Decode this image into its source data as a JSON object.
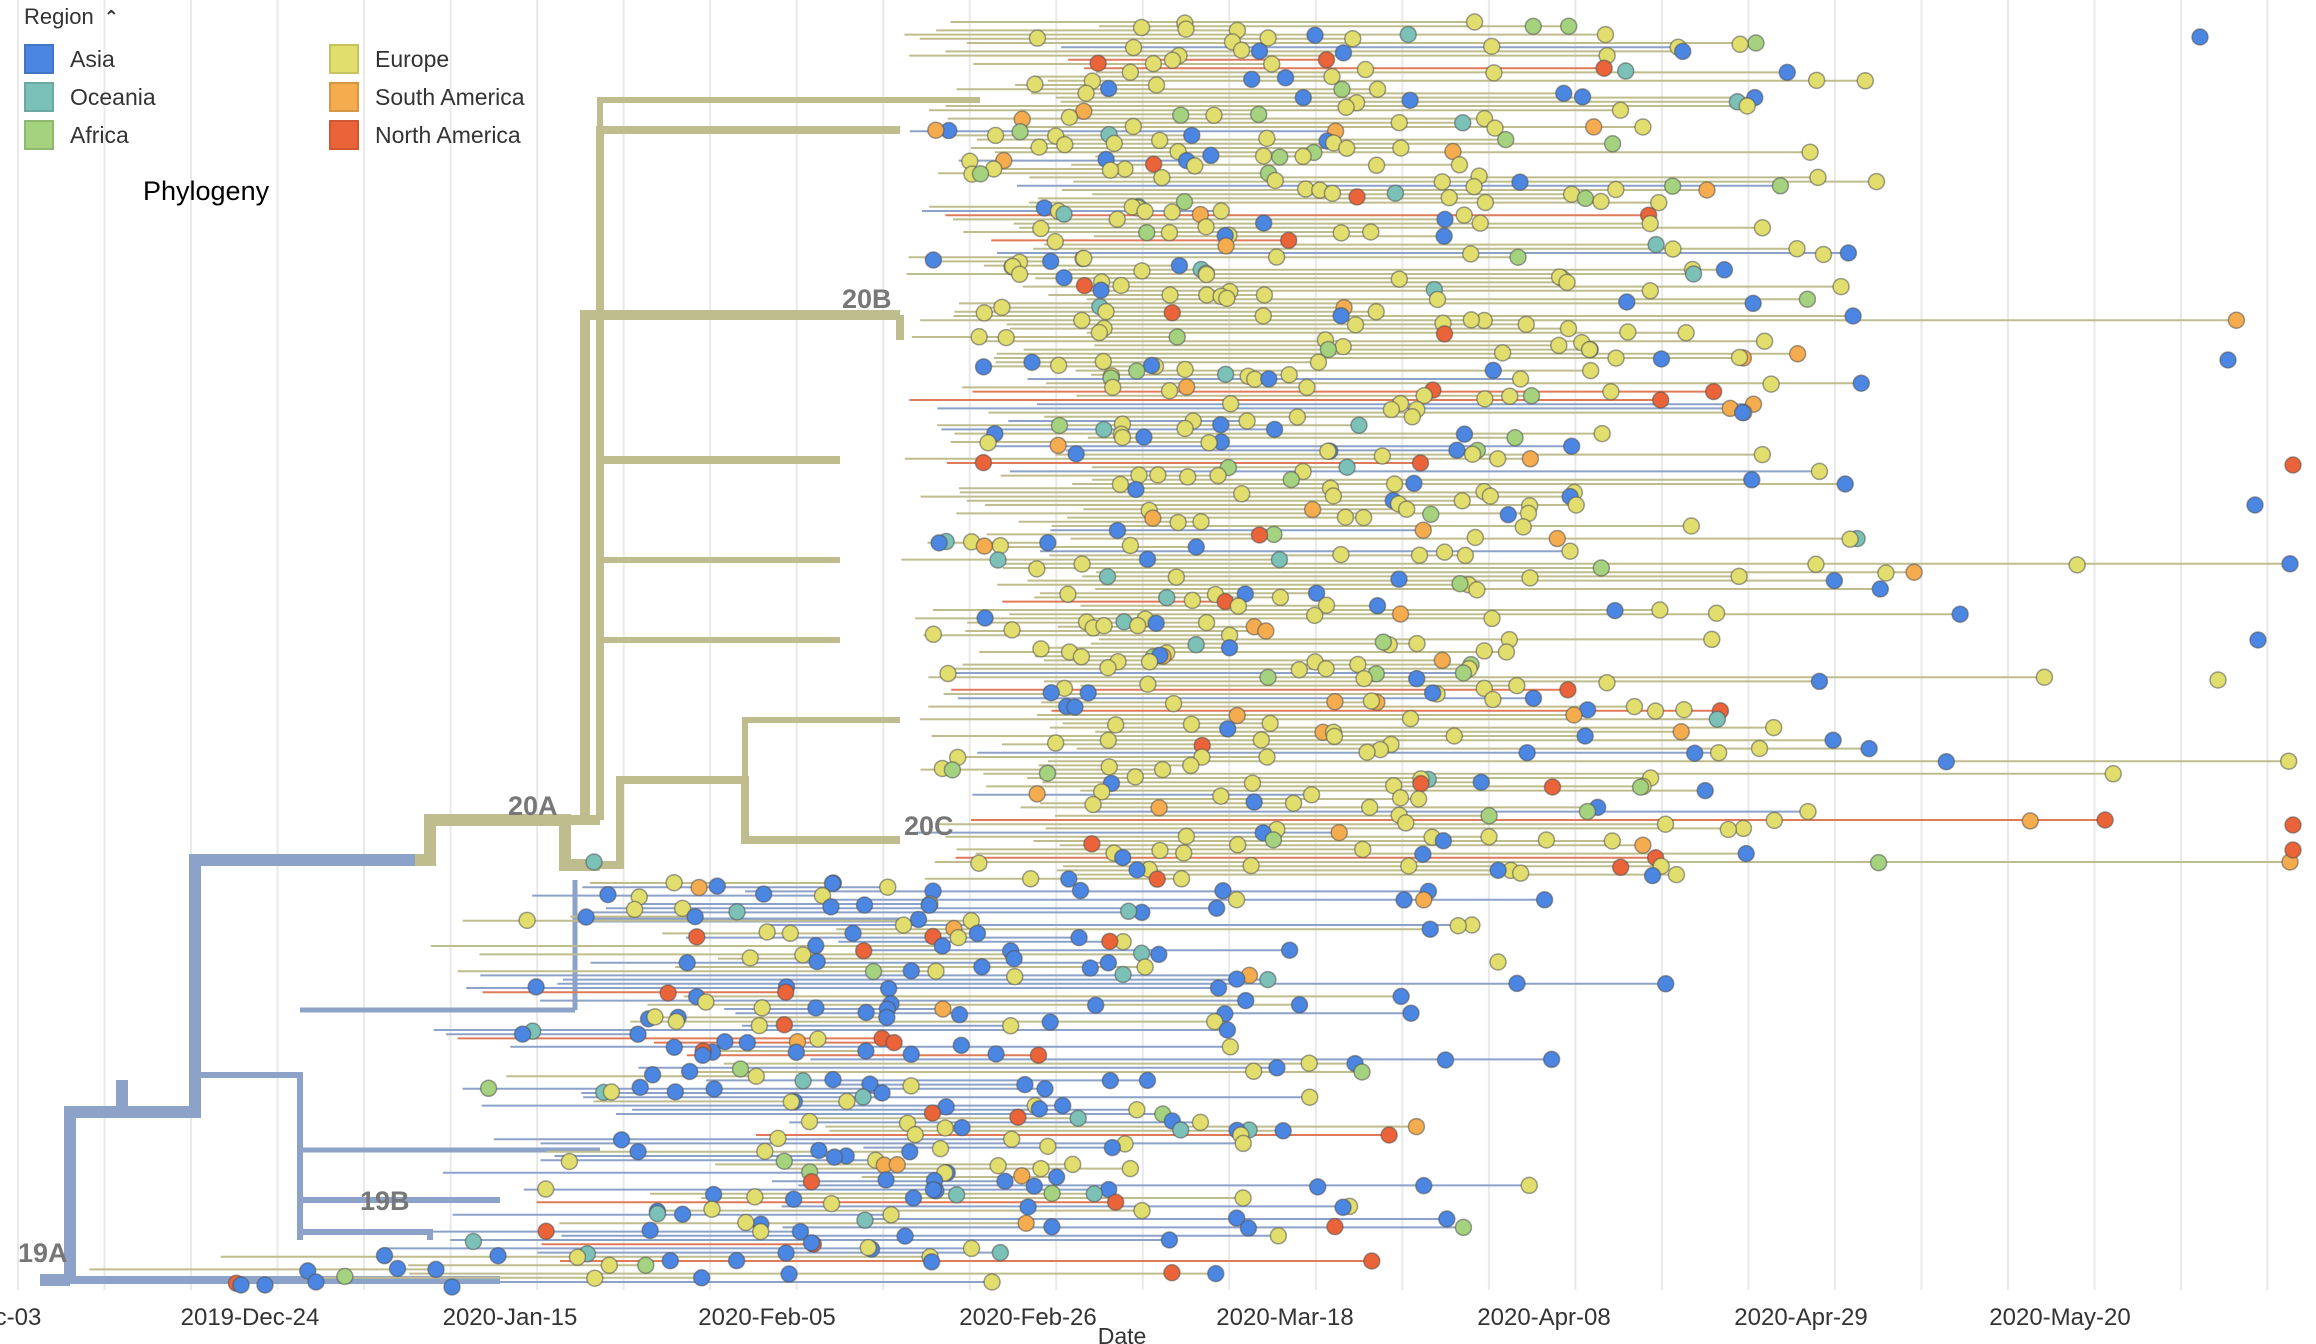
{
  "legend": {
    "title": "Region",
    "toggle_icon": "chevron-up-icon",
    "items": [
      {
        "label": "Asia",
        "color": "#4C86E3"
      },
      {
        "label": "Oceania",
        "color": "#7BC1B7"
      },
      {
        "label": "Africa",
        "color": "#A4D27E"
      },
      {
        "label": "Europe",
        "color": "#E1DE6E"
      },
      {
        "label": "South America",
        "color": "#F4AC4F"
      },
      {
        "label": "North America",
        "color": "#EB6339"
      }
    ]
  },
  "panel_title": "Phylogeny",
  "chart_data": {
    "type": "scatter",
    "subtype": "phylogenetic-tree",
    "title": "Phylogeny",
    "xlabel": "Date",
    "ylabel": "",
    "x_ticks": [
      "c-03",
      "2019-Dec-24",
      "2020-Jan-15",
      "2020-Feb-05",
      "2020-Feb-26",
      "2020-Mar-18",
      "2020-Apr-08",
      "2020-Apr-29",
      "2020-May-20"
    ],
    "x_range": [
      "2019-Dec-03",
      "2020-Jun-12"
    ],
    "grid": true,
    "legend_position": "top-left",
    "legend_title": "Region",
    "clades": [
      {
        "name": "19A",
        "branch_color": "#8DA2C9"
      },
      {
        "name": "19B",
        "branch_color": "#8DA2C9"
      },
      {
        "name": "20A",
        "branch_color": "#BFBD8E"
      },
      {
        "name": "20B",
        "branch_color": "#BFBD8E"
      },
      {
        "name": "20C",
        "branch_color": "#BFBD8E"
      }
    ],
    "series": [
      {
        "name": "Asia",
        "color": "#4C86E3"
      },
      {
        "name": "Oceania",
        "color": "#7BC1B7"
      },
      {
        "name": "Africa",
        "color": "#A4D27E"
      },
      {
        "name": "Europe",
        "color": "#E1DE6E"
      },
      {
        "name": "South America",
        "color": "#F4AC4F"
      },
      {
        "name": "North America",
        "color": "#EB6339"
      }
    ]
  }
}
